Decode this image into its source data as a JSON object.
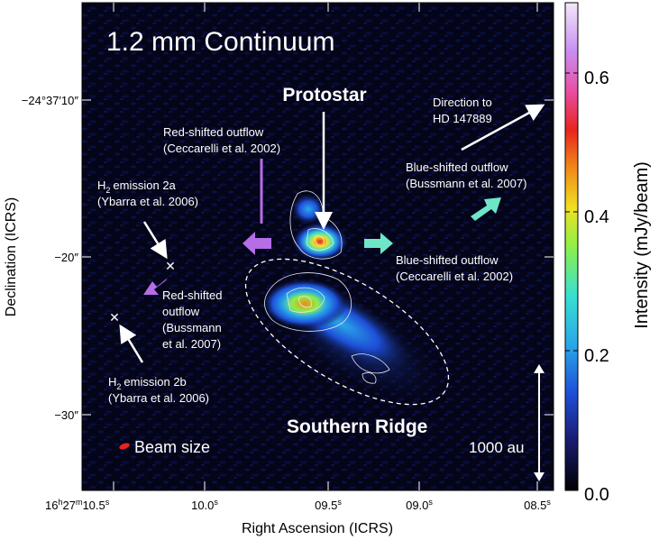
{
  "chart_data": {
    "type": "heatmap",
    "title": "1.2 mm Continuum",
    "xlabel": "Right Ascension (ICRS)",
    "ylabel": "Declination (ICRS)",
    "colorbar_label": "Intensity (mJy/beam)",
    "colorbar_range": [
      0.0,
      0.7
    ],
    "colorbar_ticks": [
      "0.0",
      "0.2",
      "0.4",
      "0.6"
    ],
    "x_ticks": [
      {
        "base": "16",
        "h": "h",
        "mid": "27",
        "m": "m",
        "val": "10.5",
        "s": "s"
      },
      {
        "base": "",
        "h": "",
        "mid": "",
        "m": "",
        "val": "10.0",
        "s": "s"
      },
      {
        "base": "",
        "h": "",
        "mid": "",
        "m": "",
        "val": "09.5",
        "s": "s"
      },
      {
        "base": "",
        "h": "",
        "mid": "",
        "m": "",
        "val": "09.0",
        "s": "s"
      },
      {
        "base": "",
        "h": "",
        "mid": "",
        "m": "",
        "val": "08.5",
        "s": "s"
      }
    ],
    "y_ticks": [
      "−24°37′10″",
      "−20″",
      "−30″"
    ],
    "annotations": {
      "protostar": "Protostar",
      "southern_ridge": "Southern Ridge",
      "red_outflow_1": [
        "Red-shifted outflow",
        "(Ceccarelli et al. 2002)"
      ],
      "blue_outflow_1": [
        "Blue-shifted outflow",
        "(Bussmann et al. 2007)"
      ],
      "blue_outflow_2": [
        "Blue-shifted outflow",
        "(Ceccarelli et al. 2002)"
      ],
      "red_outflow_2": [
        "Red-shifted",
        "outflow",
        "(Bussmann",
        "et al. 2007)"
      ],
      "h2_2a": [
        "emission 2a",
        "(Ybarra et al. 2006)"
      ],
      "h2_2b": [
        "emission 2b",
        "(Ybarra et al. 2006)"
      ],
      "h2_prefix": "H",
      "h2_sub": "2",
      "direction": [
        "Direction to",
        "HD 147889"
      ],
      "beam": "Beam size",
      "scale": "1000 au"
    },
    "colors": {
      "background": "#05061a",
      "red_outflow_arrow": "#b46ee6",
      "blue_outflow_arrow": "#6ee6c8",
      "colormap": [
        "#000000",
        "#1a1a6e",
        "#1e4fd8",
        "#2aa8e8",
        "#38e0d0",
        "#8ef04a",
        "#f0e020",
        "#f08a18",
        "#e8241e",
        "#e84fa6",
        "#c88ef0",
        "#f4e8fa"
      ]
    }
  }
}
